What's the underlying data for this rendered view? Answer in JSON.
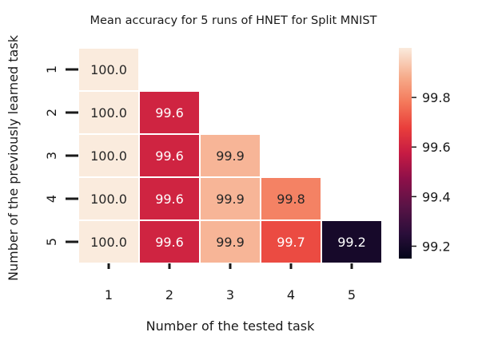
{
  "chart_data": {
    "type": "heatmap",
    "title": "Mean accuracy for 5 runs of HNET for Split MNIST",
    "xlabel": "Number of the tested task",
    "ylabel": "Number of the previously learned task",
    "x_categories": [
      "1",
      "2",
      "3",
      "4",
      "5"
    ],
    "y_categories": [
      "1",
      "2",
      "3",
      "4",
      "5"
    ],
    "values": [
      [
        100.0,
        null,
        null,
        null,
        null
      ],
      [
        100.0,
        99.6,
        null,
        null,
        null
      ],
      [
        100.0,
        99.6,
        99.9,
        null,
        null
      ],
      [
        100.0,
        99.6,
        99.9,
        99.8,
        null
      ],
      [
        100.0,
        99.6,
        99.9,
        99.7,
        99.2
      ]
    ],
    "value_labels": [
      [
        "100.0",
        null,
        null,
        null,
        null
      ],
      [
        "100.0",
        "99.6",
        null,
        null,
        null
      ],
      [
        "100.0",
        "99.6",
        "99.9",
        null,
        null
      ],
      [
        "100.0",
        "99.6",
        "99.9",
        "99.8",
        null
      ],
      [
        "100.0",
        "99.6",
        "99.9",
        "99.7",
        "99.2"
      ]
    ],
    "colorbar": {
      "range": [
        99.15,
        100.0
      ],
      "ticks": [
        99.2,
        99.4,
        99.6,
        99.8
      ],
      "tick_labels": [
        "99.2",
        "99.4",
        "99.6",
        "99.8"
      ],
      "colormap": "rocket"
    },
    "grid": false
  }
}
